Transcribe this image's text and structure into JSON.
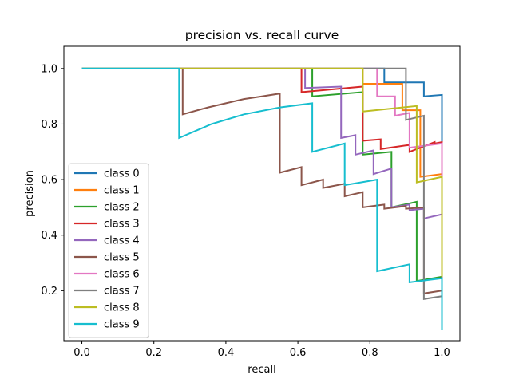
{
  "chart_data": {
    "type": "line",
    "title": "precision vs. recall curve",
    "xlabel": "recall",
    "ylabel": "precision",
    "xlim": [
      -0.05,
      1.05
    ],
    "ylim": [
      0.02,
      1.08
    ],
    "xticks": [
      0.0,
      0.2,
      0.4,
      0.6,
      0.8,
      1.0
    ],
    "xtick_labels": [
      "0.0",
      "0.2",
      "0.4",
      "0.6",
      "0.8",
      "1.0"
    ],
    "yticks": [
      0.2,
      0.4,
      0.6,
      0.8,
      1.0
    ],
    "ytick_labels": [
      "0.2",
      "0.4",
      "0.6",
      "0.8",
      "1.0"
    ],
    "grid": false,
    "legend_position": "lower-left",
    "series": [
      {
        "name": "class 0",
        "color": "#1f77b4",
        "points": [
          [
            0.0,
            1.0
          ],
          [
            0.84,
            1.0
          ],
          [
            0.84,
            0.95
          ],
          [
            0.95,
            0.95
          ],
          [
            0.95,
            0.9
          ],
          [
            1.0,
            0.905
          ],
          [
            1.0,
            0.25
          ]
        ]
      },
      {
        "name": "class 1",
        "color": "#ff7f0e",
        "points": [
          [
            0.0,
            1.0
          ],
          [
            0.78,
            1.0
          ],
          [
            0.78,
            0.945
          ],
          [
            0.89,
            0.945
          ],
          [
            0.89,
            0.85
          ],
          [
            0.94,
            0.85
          ],
          [
            0.94,
            0.61
          ],
          [
            1.0,
            0.62
          ],
          [
            1.0,
            0.24
          ]
        ]
      },
      {
        "name": "class 2",
        "color": "#2ca02c",
        "points": [
          [
            0.0,
            1.0
          ],
          [
            0.64,
            1.0
          ],
          [
            0.64,
            0.9
          ],
          [
            0.78,
            0.915
          ],
          [
            0.78,
            0.69
          ],
          [
            0.86,
            0.7
          ],
          [
            0.86,
            0.5
          ],
          [
            0.93,
            0.52
          ],
          [
            0.93,
            0.235
          ],
          [
            1.0,
            0.25
          ]
        ]
      },
      {
        "name": "class 3",
        "color": "#d62728",
        "points": [
          [
            0.0,
            1.0
          ],
          [
            0.61,
            1.0
          ],
          [
            0.61,
            0.915
          ],
          [
            0.78,
            0.935
          ],
          [
            0.78,
            0.74
          ],
          [
            0.83,
            0.745
          ],
          [
            0.83,
            0.71
          ],
          [
            0.91,
            0.725
          ],
          [
            0.91,
            0.7
          ],
          [
            0.98,
            0.735
          ],
          [
            0.98,
            0.73
          ],
          [
            1.0,
            0.735
          ],
          [
            1.0,
            0.25
          ]
        ]
      },
      {
        "name": "class 4",
        "color": "#9467bd",
        "points": [
          [
            0.0,
            1.0
          ],
          [
            0.62,
            1.0
          ],
          [
            0.62,
            0.93
          ],
          [
            0.72,
            0.935
          ],
          [
            0.72,
            0.75
          ],
          [
            0.76,
            0.76
          ],
          [
            0.76,
            0.69
          ],
          [
            0.81,
            0.705
          ],
          [
            0.81,
            0.62
          ],
          [
            0.86,
            0.64
          ],
          [
            0.86,
            0.5
          ],
          [
            0.91,
            0.51
          ],
          [
            0.91,
            0.49
          ],
          [
            0.95,
            0.495
          ],
          [
            0.95,
            0.46
          ],
          [
            1.0,
            0.475
          ],
          [
            1.0,
            0.24
          ]
        ]
      },
      {
        "name": "class 5",
        "color": "#8c564b",
        "points": [
          [
            0.0,
            1.0
          ],
          [
            0.28,
            1.0
          ],
          [
            0.28,
            0.835
          ],
          [
            0.35,
            0.86
          ],
          [
            0.4,
            0.875
          ],
          [
            0.45,
            0.89
          ],
          [
            0.5,
            0.9
          ],
          [
            0.55,
            0.91
          ],
          [
            0.55,
            0.625
          ],
          [
            0.61,
            0.645
          ],
          [
            0.61,
            0.58
          ],
          [
            0.67,
            0.6
          ],
          [
            0.67,
            0.57
          ],
          [
            0.73,
            0.585
          ],
          [
            0.73,
            0.54
          ],
          [
            0.78,
            0.555
          ],
          [
            0.78,
            0.5
          ],
          [
            0.84,
            0.51
          ],
          [
            0.84,
            0.495
          ],
          [
            0.9,
            0.505
          ],
          [
            0.9,
            0.495
          ],
          [
            0.95,
            0.5
          ],
          [
            0.95,
            0.19
          ],
          [
            1.0,
            0.2
          ]
        ]
      },
      {
        "name": "class 6",
        "color": "#e377c2",
        "points": [
          [
            0.0,
            1.0
          ],
          [
            0.82,
            1.0
          ],
          [
            0.82,
            0.9
          ],
          [
            0.87,
            0.9
          ],
          [
            0.87,
            0.83
          ],
          [
            0.91,
            0.84
          ],
          [
            0.91,
            0.715
          ],
          [
            1.0,
            0.73
          ],
          [
            1.0,
            0.25
          ]
        ]
      },
      {
        "name": "class 7",
        "color": "#7f7f7f",
        "points": [
          [
            0.0,
            1.0
          ],
          [
            0.9,
            1.0
          ],
          [
            0.9,
            0.815
          ],
          [
            0.95,
            0.83
          ],
          [
            0.95,
            0.17
          ],
          [
            1.0,
            0.18
          ]
        ]
      },
      {
        "name": "class 8",
        "color": "#bcbd22",
        "points": [
          [
            0.0,
            1.0
          ],
          [
            0.78,
            1.0
          ],
          [
            0.78,
            0.845
          ],
          [
            0.93,
            0.865
          ],
          [
            0.93,
            0.59
          ],
          [
            1.0,
            0.61
          ],
          [
            1.0,
            0.25
          ]
        ]
      },
      {
        "name": "class 9",
        "color": "#17becf",
        "points": [
          [
            0.0,
            1.0
          ],
          [
            0.27,
            1.0
          ],
          [
            0.27,
            0.75
          ],
          [
            0.36,
            0.8
          ],
          [
            0.45,
            0.835
          ],
          [
            0.55,
            0.86
          ],
          [
            0.64,
            0.875
          ],
          [
            0.64,
            0.7
          ],
          [
            0.73,
            0.73
          ],
          [
            0.73,
            0.58
          ],
          [
            0.82,
            0.6
          ],
          [
            0.82,
            0.27
          ],
          [
            0.91,
            0.295
          ],
          [
            0.91,
            0.23
          ],
          [
            1.0,
            0.245
          ],
          [
            1.0,
            0.06
          ]
        ]
      }
    ]
  }
}
